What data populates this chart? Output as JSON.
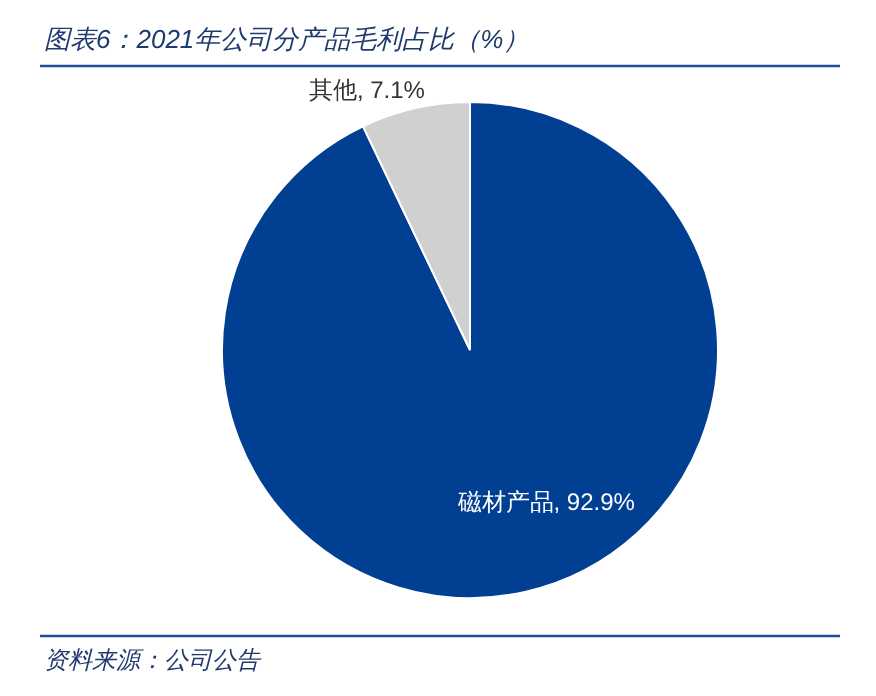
{
  "chart_data": {
    "type": "pie",
    "title": "图表6：2021年公司分产品毛利占比（%）",
    "categories": [
      "磁材产品",
      "其他"
    ],
    "values": [
      92.9,
      7.1
    ],
    "value_labels": [
      "92.9%",
      "7.1%"
    ],
    "colors": [
      "#003f91",
      "#d0d0d0"
    ],
    "annotations": [
      "资料来源：公司公告"
    ]
  }
}
